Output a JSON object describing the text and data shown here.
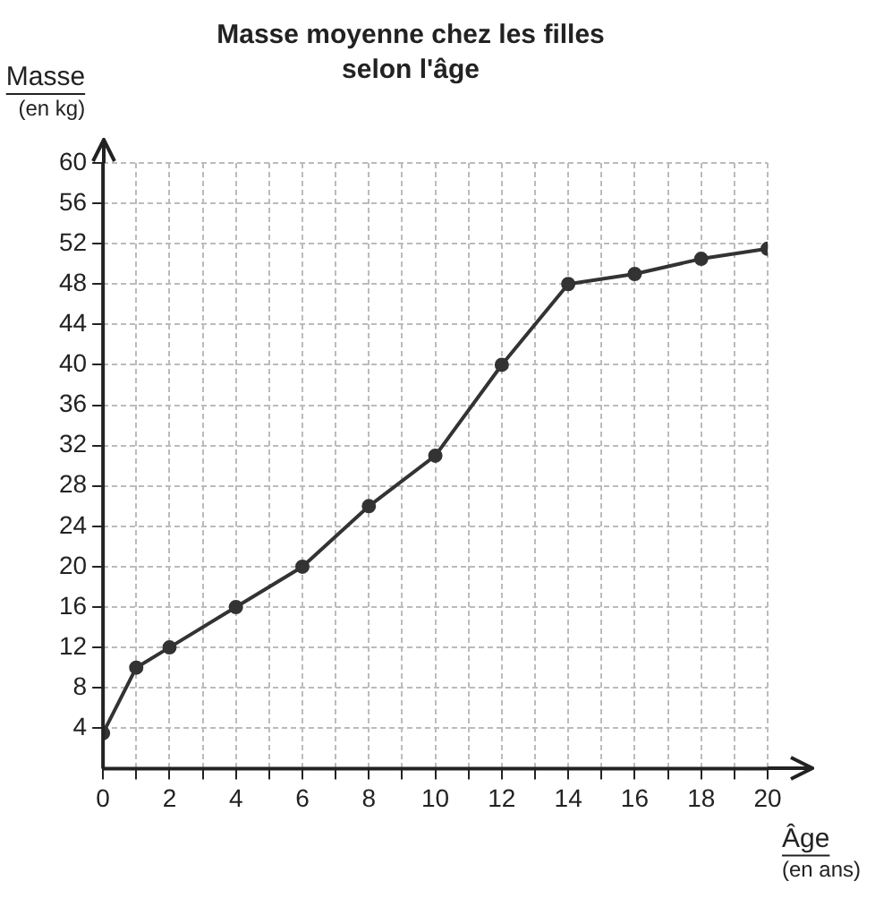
{
  "chart_data": {
    "type": "line",
    "title": "Masse moyenne chez les filles\nselon l'âge",
    "xlabel": "Âge\n(en ans)",
    "ylabel": "Masse\n(en kg)",
    "x": [
      0,
      1,
      2,
      4,
      6,
      8,
      10,
      12,
      14,
      16,
      18,
      20
    ],
    "series": [
      {
        "color": "#333333",
        "values": [
          3.5,
          10,
          12,
          16,
          20,
          26,
          31,
          40,
          48,
          49,
          50.5,
          51.5
        ]
      }
    ],
    "xlim": [
      0,
      20
    ],
    "ylim": [
      0,
      60
    ],
    "xticks": [
      0,
      {
        "value": 1,
        "label": null
      },
      2,
      {
        "value": 3,
        "label": null
      },
      4,
      {
        "value": 5,
        "label": null
      },
      6,
      {
        "value": 7,
        "label": null
      },
      8,
      {
        "value": 9,
        "label": null
      },
      10,
      {
        "value": 11,
        "label": null
      },
      12,
      {
        "value": 13,
        "label": null
      },
      14,
      {
        "value": 15,
        "label": null
      },
      16,
      {
        "value": 17,
        "label": null
      },
      18,
      {
        "value": 19,
        "label": null
      },
      20
    ],
    "yticks": [
      4,
      8,
      12,
      16,
      20,
      24,
      28,
      32,
      36,
      40,
      44,
      48,
      52,
      56,
      60
    ],
    "grid": true,
    "legend": false,
    "marker": "circle",
    "line_style": "solid"
  }
}
